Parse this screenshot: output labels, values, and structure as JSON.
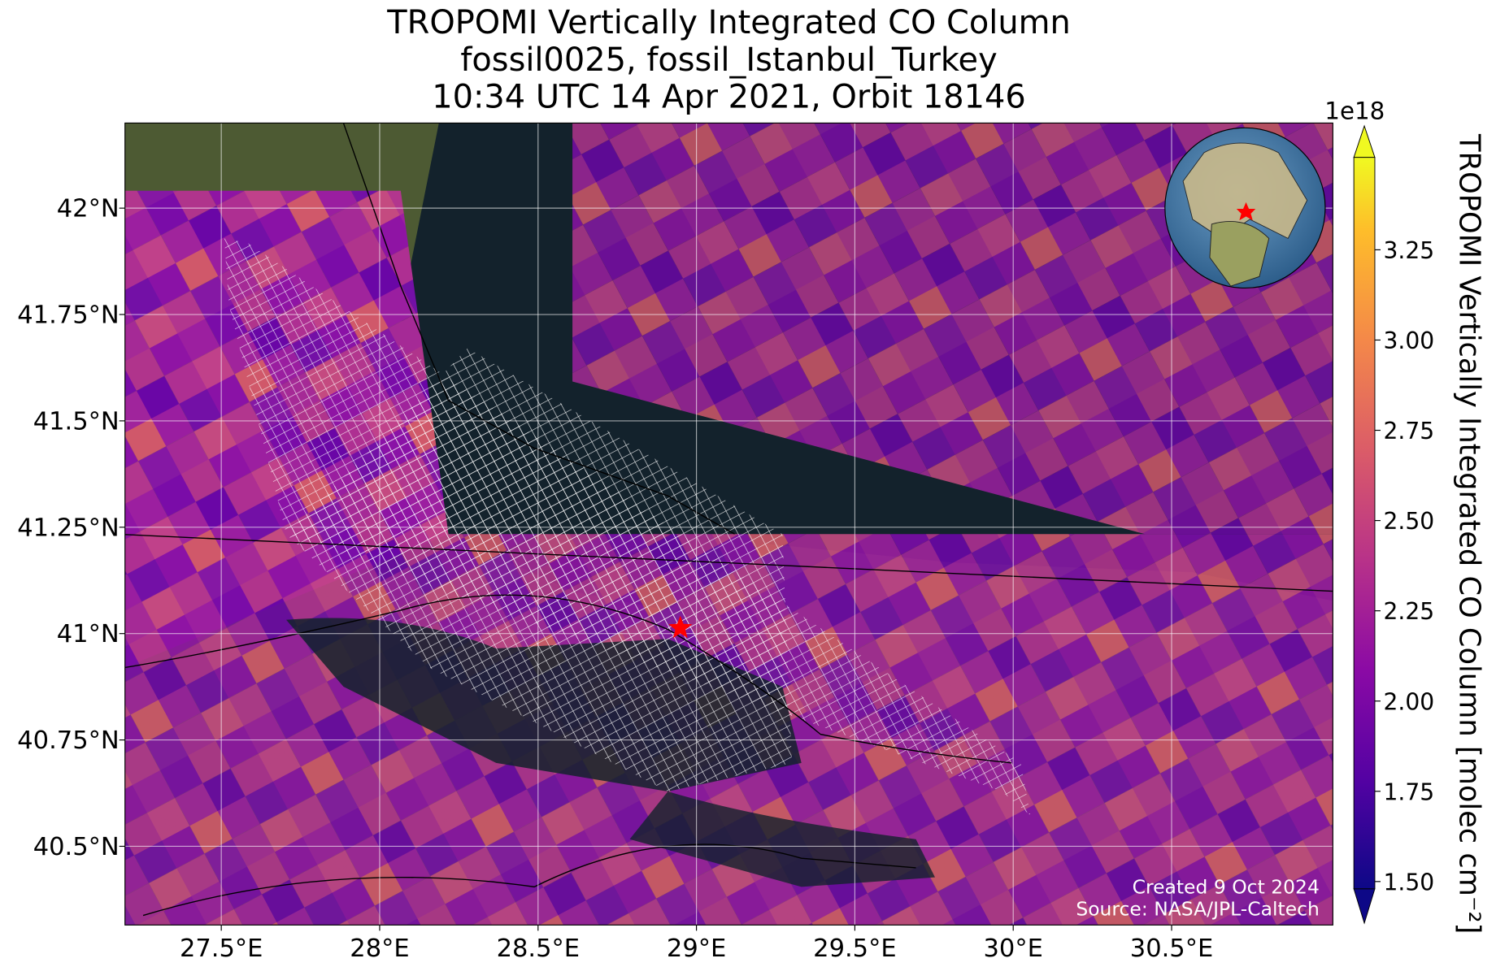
{
  "map": {
    "title": [
      "TROPOMI Vertically Integrated CO Column",
      "fossil0025, fossil_Istanbul_Turkey",
      "10:34 UTC 14 Apr 2021, Orbit 18146"
    ],
    "xlim": [
      27.196,
      31.009
    ],
    "ylim": [
      40.315,
      42.2
    ],
    "xticks": [
      {
        "value": 27.5,
        "label": "27.5°E"
      },
      {
        "value": 28,
        "label": "28°E"
      },
      {
        "value": 28.5,
        "label": "28.5°E"
      },
      {
        "value": 29,
        "label": "29°E"
      },
      {
        "value": 29.5,
        "label": "29.5°E"
      },
      {
        "value": 30,
        "label": "30°E"
      },
      {
        "value": 30.5,
        "label": "30.5°E"
      }
    ],
    "yticks": [
      {
        "value": 40.5,
        "label": "40.5°N"
      },
      {
        "value": 40.75,
        "label": "40.75°N"
      },
      {
        "value": 41,
        "label": "41°N"
      },
      {
        "value": 41.25,
        "label": "41.25°N"
      },
      {
        "value": 41.5,
        "label": "41.5°N"
      },
      {
        "value": 41.75,
        "label": "41.75°N"
      },
      {
        "value": 42,
        "label": "42°N"
      }
    ],
    "site": {
      "lon": 28.949,
      "lat": 41.013
    },
    "colorbar": {
      "label": "TROPOMI Vertically Integrated CO Column [molec cm⁻²]",
      "offset_label": "1e18",
      "lim": [
        1.48,
        3.506
      ],
      "ticks": [
        {
          "value": 1.5,
          "label": "1.50"
        },
        {
          "value": 1.75,
          "label": "1.75"
        },
        {
          "value": 2,
          "label": "2.00"
        },
        {
          "value": 2.25,
          "label": "2.25"
        },
        {
          "value": 2.5,
          "label": "2.50"
        },
        {
          "value": 2.75,
          "label": "2.75"
        },
        {
          "value": 3,
          "label": "3.00"
        },
        {
          "value": 3.25,
          "label": "3.25"
        }
      ]
    },
    "credits": [
      "Created 9 Oct 2024",
      "Source: NASA/JPL-Caltech"
    ]
  }
}
